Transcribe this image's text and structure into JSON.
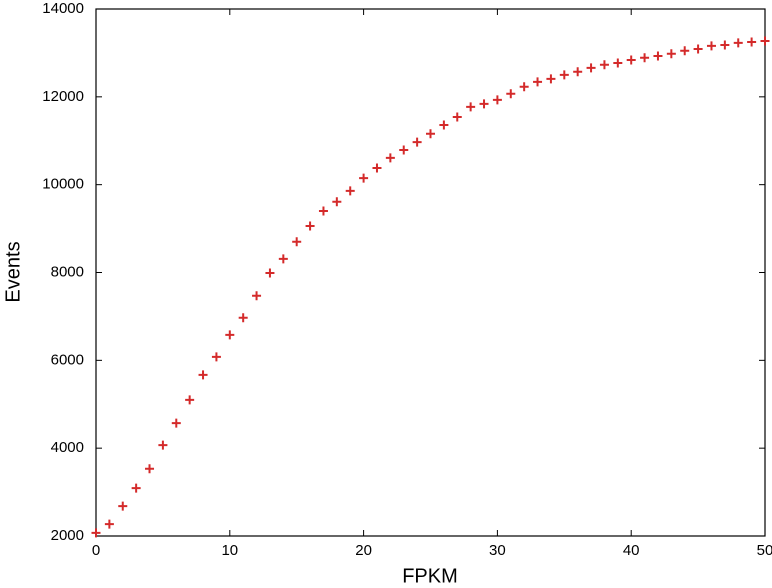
{
  "chart_data": {
    "type": "scatter",
    "x_label": "FPKM",
    "y_label": "Events",
    "x": [
      0,
      1,
      2,
      3,
      4,
      5,
      6,
      7,
      8,
      9,
      10,
      11,
      12,
      13,
      14,
      15,
      16,
      17,
      18,
      19,
      20,
      21,
      22,
      23,
      24,
      25,
      26,
      27,
      28,
      29,
      30,
      31,
      32,
      33,
      34,
      35,
      36,
      37,
      38,
      39,
      40,
      41,
      42,
      43,
      44,
      45,
      46,
      47,
      48,
      49,
      50
    ],
    "values": [
      2070,
      2270,
      2680,
      3090,
      3530,
      4070,
      4570,
      5100,
      5670,
      6080,
      6580,
      6970,
      7470,
      7990,
      8310,
      8700,
      9060,
      9400,
      9610,
      9860,
      10150,
      10380,
      10610,
      10790,
      10970,
      11160,
      11360,
      11540,
      11770,
      11840,
      11930,
      12070,
      12230,
      12340,
      12410,
      12500,
      12570,
      12660,
      12730,
      12770,
      12840,
      12890,
      12930,
      12980,
      13050,
      13090,
      13160,
      13180,
      13230,
      13250,
      13270
    ],
    "color": "#d42a2a",
    "marker": "+",
    "xlim": [
      0,
      50
    ],
    "xticks": [
      0,
      10,
      20,
      30,
      40,
      50
    ],
    "ylim": [
      2000,
      14000
    ],
    "yticks": [
      2000,
      4000,
      6000,
      8000,
      10000,
      12000,
      14000
    ]
  }
}
